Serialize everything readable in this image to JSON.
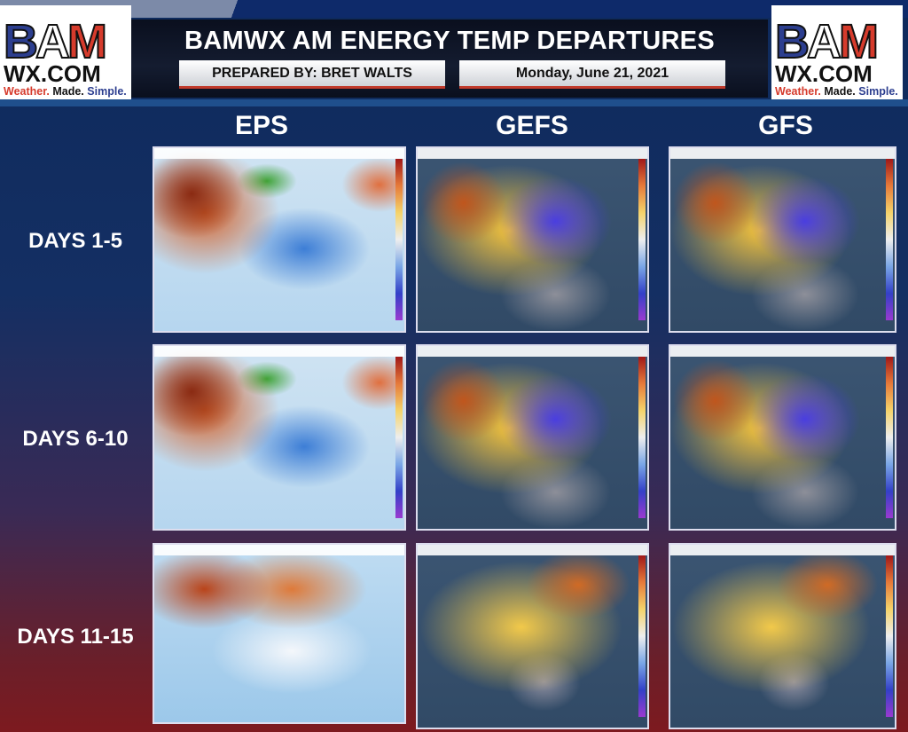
{
  "header": {
    "title": "BAMWX AM ENERGY TEMP DEPARTURES",
    "prepared_by": "PREPARED BY: BRET WALTS",
    "date": "Monday, June 21, 2021"
  },
  "logo": {
    "b": "B",
    "a": "A",
    "m": "M",
    "domain": "WX.COM",
    "tag1": "Weather.",
    "tag2": "Made.",
    "tag3": "Simple.",
    "colors": {
      "red": "#d63b2c",
      "blue": "#2c3e8f"
    }
  },
  "columns": [
    "EPS",
    "GEFS",
    "GFS"
  ],
  "rows": [
    "DAYS 1-5",
    "DAYS 6-10",
    "DAYS 11-15"
  ],
  "maps_legend": "temperature anomaly (°F): red/orange = above normal, blue/purple = below normal"
}
